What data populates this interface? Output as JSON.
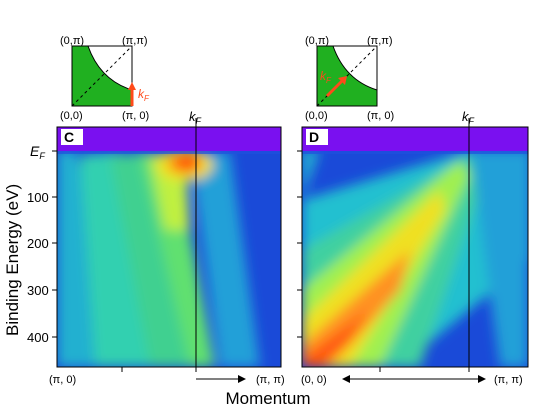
{
  "figure": {
    "y_axis_label": "Binding Energy (eV)",
    "x_axis_label": "Momentum",
    "ef_label": "E",
    "ef_sub": "F",
    "kf_label": "k",
    "kf_sub": "F",
    "y_ticks": [
      "100",
      "200",
      "300",
      "400"
    ],
    "colors": {
      "band": "#7a10f0",
      "zone_fill": "#20b020",
      "arrow": "#ff4a1a",
      "bg_low": "#1440d8"
    }
  },
  "panels": [
    {
      "id": "C",
      "label": "C",
      "x_start_label": "(π, 0)",
      "x_end_label": "(π, π)",
      "bz": {
        "tl": "(0,π)",
        "tr": "(π,π)",
        "bl": "(0,0)",
        "br": "(π, 0)"
      }
    },
    {
      "id": "D",
      "label": "D",
      "x_start_label": "(0, 0)",
      "x_end_label": "(π, π)",
      "bz": {
        "tl": "(0,π)",
        "tr": "(π,π)",
        "bl": "(0,0)",
        "br": "(π, 0)"
      }
    }
  ]
}
